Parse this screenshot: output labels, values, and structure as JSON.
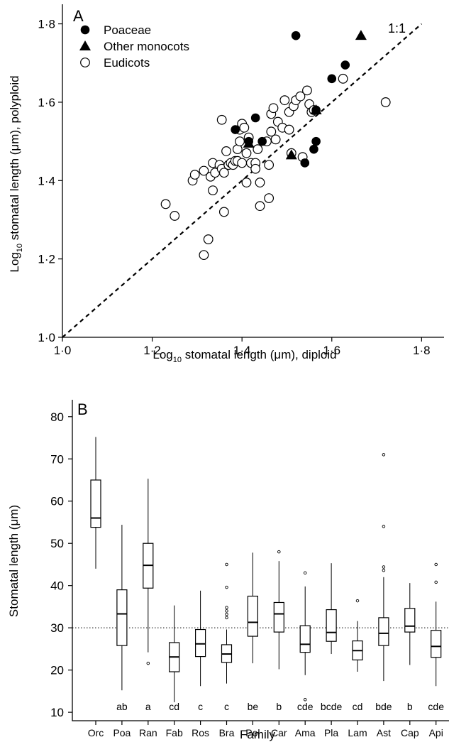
{
  "chart_data": [
    {
      "panel_label": "A",
      "type": "scatter",
      "xlabel": "Log",
      "xlabel_sub": "10",
      "xlabel_rest": " stomatal length (μm), diploid",
      "ylabel": "Log",
      "ylabel_sub": "10",
      "ylabel_rest": " stomatal length (μm), polyploid",
      "xlim": [
        1.0,
        1.85
      ],
      "ylim": [
        1.0,
        1.85
      ],
      "xticks": [
        1.0,
        1.2,
        1.4,
        1.6,
        1.8
      ],
      "yticks": [
        1.0,
        1.2,
        1.4,
        1.6,
        1.8
      ],
      "xtick_labels": [
        "1·0",
        "1·2",
        "1·4",
        "1·6",
        "1·8"
      ],
      "ytick_labels": [
        "1·0",
        "1·2",
        "1·4",
        "1·6",
        "1·8"
      ],
      "reference_line": {
        "label": "1:1",
        "from": [
          1.0,
          1.0
        ],
        "to": [
          1.8,
          1.8
        ],
        "style": "dashed"
      },
      "legend_position": "top-left",
      "grid": false,
      "series": [
        {
          "name": "Poaceae",
          "marker": "filled-circle",
          "points": [
            [
              1.52,
              1.77
            ],
            [
              1.63,
              1.695
            ],
            [
              1.6,
              1.66
            ],
            [
              1.565,
              1.58
            ],
            [
              1.385,
              1.53
            ],
            [
              1.43,
              1.56
            ],
            [
              1.415,
              1.5
            ],
            [
              1.445,
              1.5
            ],
            [
              1.565,
              1.5
            ],
            [
              1.56,
              1.48
            ],
            [
              1.54,
              1.445
            ]
          ]
        },
        {
          "name": "Other monocots",
          "marker": "filled-triangle",
          "points": [
            [
              1.665,
              1.77
            ],
            [
              1.565,
              1.58
            ],
            [
              1.415,
              1.495
            ],
            [
              1.51,
              1.465
            ]
          ]
        },
        {
          "name": "Eudicots",
          "marker": "open-circle",
          "points": [
            [
              1.23,
              1.34
            ],
            [
              1.25,
              1.31
            ],
            [
              1.29,
              1.4
            ],
            [
              1.295,
              1.415
            ],
            [
              1.315,
              1.21
            ],
            [
              1.315,
              1.425
            ],
            [
              1.325,
              1.25
            ],
            [
              1.33,
              1.41
            ],
            [
              1.335,
              1.375
            ],
            [
              1.335,
              1.445
            ],
            [
              1.34,
              1.42
            ],
            [
              1.35,
              1.44
            ],
            [
              1.355,
              1.43
            ],
            [
              1.355,
              1.555
            ],
            [
              1.36,
              1.32
            ],
            [
              1.36,
              1.42
            ],
            [
              1.365,
              1.475
            ],
            [
              1.37,
              1.44
            ],
            [
              1.375,
              1.445
            ],
            [
              1.38,
              1.44
            ],
            [
              1.385,
              1.45
            ],
            [
              1.39,
              1.45
            ],
            [
              1.39,
              1.48
            ],
            [
              1.395,
              1.5
            ],
            [
              1.395,
              1.53
            ],
            [
              1.4,
              1.545
            ],
            [
              1.4,
              1.445
            ],
            [
              1.405,
              1.535
            ],
            [
              1.41,
              1.47
            ],
            [
              1.415,
              1.51
            ],
            [
              1.42,
              1.445
            ],
            [
              1.41,
              1.395
            ],
            [
              1.43,
              1.445
            ],
            [
              1.43,
              1.43
            ],
            [
              1.435,
              1.48
            ],
            [
              1.44,
              1.395
            ],
            [
              1.44,
              1.335
            ],
            [
              1.455,
              1.5
            ],
            [
              1.46,
              1.355
            ],
            [
              1.46,
              1.44
            ],
            [
              1.465,
              1.525
            ],
            [
              1.465,
              1.57
            ],
            [
              1.47,
              1.585
            ],
            [
              1.475,
              1.505
            ],
            [
              1.48,
              1.55
            ],
            [
              1.49,
              1.535
            ],
            [
              1.495,
              1.605
            ],
            [
              1.505,
              1.575
            ],
            [
              1.505,
              1.53
            ],
            [
              1.51,
              1.47
            ],
            [
              1.515,
              1.59
            ],
            [
              1.52,
              1.605
            ],
            [
              1.53,
              1.615
            ],
            [
              1.535,
              1.46
            ],
            [
              1.545,
              1.63
            ],
            [
              1.55,
              1.595
            ],
            [
              1.555,
              1.575
            ],
            [
              1.56,
              1.58
            ],
            [
              1.625,
              1.66
            ],
            [
              1.72,
              1.6
            ]
          ]
        }
      ]
    },
    {
      "panel_label": "B",
      "type": "box",
      "xlabel": "Family",
      "ylabel": "Stomatal length (μm)",
      "ylim": [
        8,
        84
      ],
      "yticks": [
        10,
        20,
        30,
        40,
        50,
        60,
        70,
        80
      ],
      "reference_line": {
        "y": 30,
        "style": "dotted"
      },
      "grid": false,
      "categories": [
        "Orc",
        "Poa",
        "Ran",
        "Fab",
        "Ros",
        "Bra",
        "Pol",
        "Car",
        "Ama",
        "Pla",
        "Lam",
        "Ast",
        "Cap",
        "Api"
      ],
      "letters": [
        "",
        "ab",
        "a",
        "cd",
        "c",
        "c",
        "be",
        "b",
        "cde",
        "bcde",
        "cd",
        "bde",
        "b",
        "cde"
      ],
      "boxes": [
        {
          "min": 44,
          "q1": 53.8,
          "median": 56.0,
          "q3": 65.0,
          "max": 75.2,
          "outliers": []
        },
        {
          "min": 15.2,
          "q1": 25.8,
          "median": 33.3,
          "q3": 39.0,
          "max": 54.4,
          "outliers": []
        },
        {
          "min": 24.2,
          "q1": 39.4,
          "median": 44.8,
          "q3": 50.0,
          "max": 65.3,
          "outliers": [
            21.6
          ]
        },
        {
          "min": 12.4,
          "q1": 19.6,
          "median": 23.1,
          "q3": 26.5,
          "max": 35.3,
          "outliers": []
        },
        {
          "min": 16.2,
          "q1": 23.2,
          "median": 26.2,
          "q3": 29.6,
          "max": 38.8,
          "outliers": []
        },
        {
          "min": 16.8,
          "q1": 21.8,
          "median": 23.8,
          "q3": 26.0,
          "max": 29.6,
          "outliers": [
            32.4,
            33.2,
            34.0,
            34.8,
            39.6,
            45.0
          ]
        },
        {
          "min": 21.6,
          "q1": 28.0,
          "median": 31.3,
          "q3": 37.5,
          "max": 47.8,
          "outliers": []
        },
        {
          "min": 20.2,
          "q1": 29.0,
          "median": 33.3,
          "q3": 36.0,
          "max": 45.8,
          "outliers": [
            48.0
          ]
        },
        {
          "min": 18.8,
          "q1": 24.2,
          "median": 26.1,
          "q3": 30.5,
          "max": 39.8,
          "outliers": [
            13.0,
            43.0
          ]
        },
        {
          "min": 23.8,
          "q1": 26.8,
          "median": 28.9,
          "q3": 34.3,
          "max": 45.3,
          "outliers": []
        },
        {
          "min": 19.6,
          "q1": 22.4,
          "median": 24.6,
          "q3": 26.9,
          "max": 31.6,
          "outliers": [
            36.4
          ]
        },
        {
          "min": 17.4,
          "q1": 25.8,
          "median": 28.7,
          "q3": 32.4,
          "max": 42.0,
          "outliers": [
            43.6,
            44.4,
            54.0,
            71.0
          ]
        },
        {
          "min": 21.2,
          "q1": 29.0,
          "median": 30.4,
          "q3": 34.6,
          "max": 40.6,
          "outliers": []
        },
        {
          "min": 16.2,
          "q1": 23.0,
          "median": 25.6,
          "q3": 29.4,
          "max": 36.2,
          "outliers": [
            40.8,
            45.0
          ]
        }
      ]
    }
  ]
}
